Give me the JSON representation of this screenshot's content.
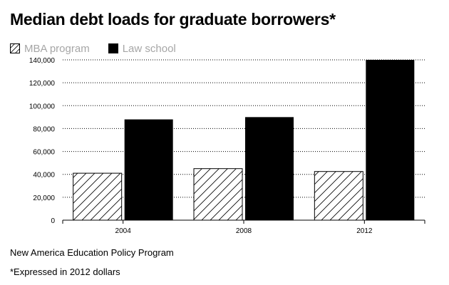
{
  "title": "Median debt loads for graduate borrowers*",
  "legend": {
    "mba_label": "MBA program",
    "law_label": "Law school"
  },
  "source": "New America Education Policy Program",
  "note": "*Expressed in 2012 dollars",
  "colors": {
    "mba_fill": "#ffffff",
    "mba_hatch": "#000000",
    "law_fill": "#000000",
    "legend_text": "#a6a6a6",
    "grid": "#000000"
  },
  "chart_data": {
    "type": "bar",
    "categories": [
      "2004",
      "2008",
      "2012"
    ],
    "series": [
      {
        "name": "MBA program",
        "values": [
          41000,
          45000,
          42500
        ],
        "pattern": "diagonal-hatch"
      },
      {
        "name": "Law school",
        "values": [
          88000,
          90000,
          140000
        ],
        "pattern": "solid"
      }
    ],
    "yticks": [
      0,
      20000,
      40000,
      60000,
      80000,
      100000,
      120000,
      140000
    ],
    "ytick_labels": [
      "0",
      "20,000",
      "40,000",
      "60,000",
      "80,000",
      "100,000",
      "120,000",
      "140,000"
    ],
    "ylim": [
      0,
      140000
    ],
    "grid": "dotted-horizontal",
    "legend_position": "top-left"
  }
}
